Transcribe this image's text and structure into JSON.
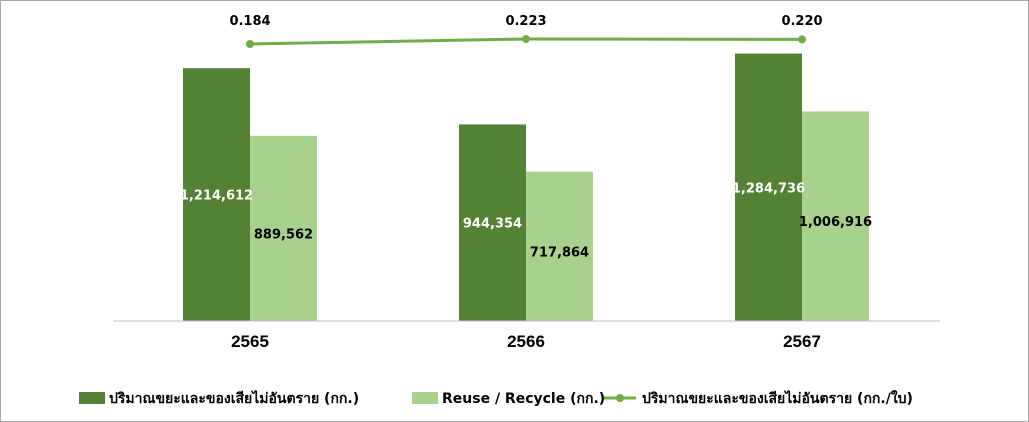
{
  "chart_data": {
    "type": "bar",
    "categories": [
      "2565",
      "2566",
      "2567"
    ],
    "series": [
      {
        "name": "ปริมาณขยะและของเสียไม่อันตราย (กก.)",
        "kind": "bar",
        "color": "#548235",
        "values": [
          1214612,
          944354,
          1284736
        ],
        "labels": [
          "1,214,612",
          "944,354",
          "1,284,736"
        ],
        "label_color": "#ffffff"
      },
      {
        "name": "Reuse / Recycle (กก.)",
        "kind": "bar",
        "color": "#a9d18e",
        "values": [
          889562,
          717864,
          1006916
        ],
        "labels": [
          "889,562",
          "717,864",
          "1,006,916"
        ],
        "label_color": "#000000"
      },
      {
        "name": "ปริมาณขยะและของเสียไม่อันตราย (กก./ใบ)",
        "kind": "line",
        "color": "#70ad47",
        "values": [
          0.184,
          0.223,
          0.22
        ],
        "labels": [
          "0.184",
          "0.223",
          "0.220"
        ],
        "label_color": "#000000"
      }
    ],
    "ylim_bar": [
      0,
      1350000
    ],
    "ylim_line": [
      0,
      0.223
    ],
    "grid": false,
    "legend_position": "bottom"
  }
}
